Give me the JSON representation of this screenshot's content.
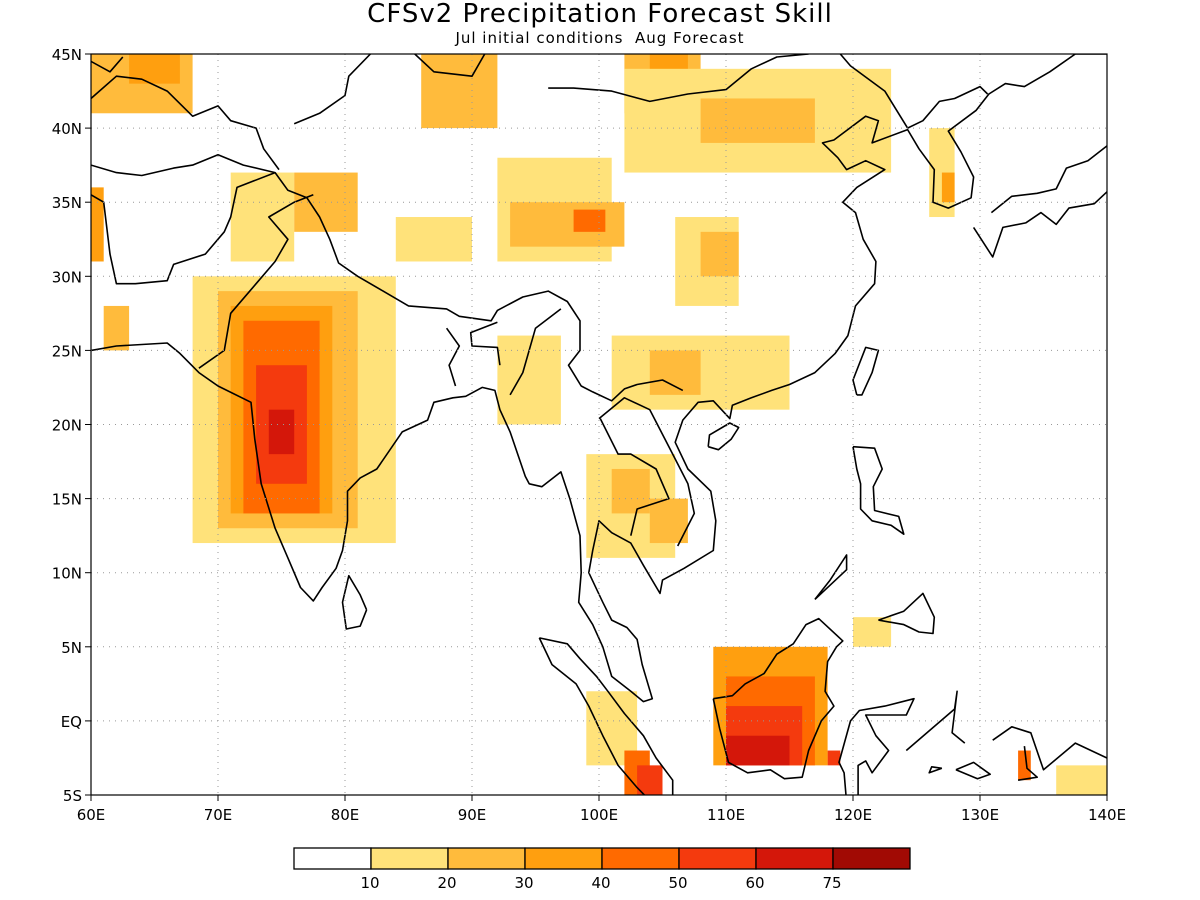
{
  "title": "CFSv2 Precipitation Forecast Skill",
  "subtitle": "Jul initial conditions  Aug Forecast",
  "map": {
    "lon_range": [
      60,
      140
    ],
    "lat_range": [
      -5,
      45
    ],
    "lon_ticks": [
      "60E",
      "70E",
      "80E",
      "90E",
      "100E",
      "110E",
      "120E",
      "130E",
      "140E"
    ],
    "lat_ticks": [
      "45N",
      "40N",
      "35N",
      "30N",
      "25N",
      "20N",
      "15N",
      "10N",
      "5N",
      "EQ",
      "5S"
    ],
    "gridlines": "dotted"
  },
  "legend": {
    "levels": [
      "10",
      "20",
      "30",
      "40",
      "50",
      "60",
      "75"
    ],
    "colors": [
      "#ffffff",
      "#ffe27a",
      "#ffbb3c",
      "#ff9f0f",
      "#ff6a00",
      "#f43a0e",
      "#d4170a",
      "#a10a04"
    ]
  },
  "chart_data": {
    "type": "heatmap",
    "title": "CFSv2 Precipitation Forecast Skill",
    "subtitle": "Jul initial conditions  Aug Forecast",
    "x_range": [
      60,
      140
    ],
    "y_range": [
      -5,
      45
    ],
    "contour_levels": [
      10,
      20,
      30,
      40,
      50,
      60,
      75
    ],
    "regions": [
      {
        "lon": [
          60,
          68
        ],
        "lat": [
          41,
          45
        ],
        "level": 20
      },
      {
        "lon": [
          63,
          67
        ],
        "lat": [
          43,
          45
        ],
        "level": 30
      },
      {
        "lon": [
          86,
          92
        ],
        "lat": [
          40,
          45
        ],
        "level": 20
      },
      {
        "lon": [
          102,
          108
        ],
        "lat": [
          41,
          45
        ],
        "level": 20
      },
      {
        "lon": [
          104,
          107
        ],
        "lat": [
          43,
          45
        ],
        "level": 30
      },
      {
        "lon": [
          102,
          123
        ],
        "lat": [
          37,
          44
        ],
        "level": 10
      },
      {
        "lon": [
          108,
          117
        ],
        "lat": [
          39,
          42
        ],
        "level": 20
      },
      {
        "lon": [
          71,
          76
        ],
        "lat": [
          31,
          37
        ],
        "level": 10
      },
      {
        "lon": [
          76,
          81
        ],
        "lat": [
          33,
          37
        ],
        "level": 20
      },
      {
        "lon": [
          84,
          90
        ],
        "lat": [
          31,
          34
        ],
        "level": 10
      },
      {
        "lon": [
          92,
          101
        ],
        "lat": [
          31,
          38
        ],
        "level": 10
      },
      {
        "lon": [
          93,
          102
        ],
        "lat": [
          32,
          35
        ],
        "level": 20
      },
      {
        "lon": [
          98,
          100.5
        ],
        "lat": [
          33,
          34.5
        ],
        "level": 40
      },
      {
        "lon": [
          106,
          111
        ],
        "lat": [
          28,
          34
        ],
        "level": 10
      },
      {
        "lon": [
          108,
          111
        ],
        "lat": [
          30,
          33
        ],
        "level": 20
      },
      {
        "lon": [
          126,
          128
        ],
        "lat": [
          34,
          40
        ],
        "level": 10
      },
      {
        "lon": [
          127,
          128
        ],
        "lat": [
          35,
          37
        ],
        "level": 30
      },
      {
        "lon": [
          60,
          61
        ],
        "lat": [
          31,
          36
        ],
        "level": 30
      },
      {
        "lon": [
          61,
          63
        ],
        "lat": [
          25,
          28
        ],
        "level": 20
      },
      {
        "lon": [
          68,
          84
        ],
        "lat": [
          12,
          30
        ],
        "level": 10
      },
      {
        "lon": [
          70,
          81
        ],
        "lat": [
          13,
          29
        ],
        "level": 20
      },
      {
        "lon": [
          71,
          79
        ],
        "lat": [
          14,
          28
        ],
        "level": 30
      },
      {
        "lon": [
          72,
          78
        ],
        "lat": [
          14,
          27
        ],
        "level": 40
      },
      {
        "lon": [
          73,
          77
        ],
        "lat": [
          16,
          24
        ],
        "level": 50
      },
      {
        "lon": [
          74,
          76
        ],
        "lat": [
          18,
          21
        ],
        "level": 60
      },
      {
        "lon": [
          92,
          97
        ],
        "lat": [
          20,
          26
        ],
        "level": 10
      },
      {
        "lon": [
          101,
          115
        ],
        "lat": [
          21,
          26
        ],
        "level": 10
      },
      {
        "lon": [
          104,
          108
        ],
        "lat": [
          22,
          25
        ],
        "level": 20
      },
      {
        "lon": [
          99,
          106
        ],
        "lat": [
          11,
          18
        ],
        "level": 10
      },
      {
        "lon": [
          101,
          104
        ],
        "lat": [
          14,
          17
        ],
        "level": 20
      },
      {
        "lon": [
          104,
          107
        ],
        "lat": [
          12,
          15
        ],
        "level": 20
      },
      {
        "lon": [
          120,
          123
        ],
        "lat": [
          5,
          7
        ],
        "level": 10
      },
      {
        "lon": [
          118,
          119
        ],
        "lat": [
          -3,
          -2
        ],
        "level": 50
      },
      {
        "lon": [
          99,
          103
        ],
        "lat": [
          -3,
          2
        ],
        "level": 10
      },
      {
        "lon": [
          102,
          104
        ],
        "lat": [
          -5,
          -2
        ],
        "level": 40
      },
      {
        "lon": [
          103,
          105
        ],
        "lat": [
          -5,
          -3
        ],
        "level": 50
      },
      {
        "lon": [
          109,
          118
        ],
        "lat": [
          -3,
          5
        ],
        "level": 30
      },
      {
        "lon": [
          110,
          117
        ],
        "lat": [
          -3,
          3
        ],
        "level": 40
      },
      {
        "lon": [
          110,
          116
        ],
        "lat": [
          -3,
          1
        ],
        "level": 50
      },
      {
        "lon": [
          110,
          115
        ],
        "lat": [
          -3,
          -1
        ],
        "level": 60
      },
      {
        "lon": [
          133,
          134
        ],
        "lat": [
          -4,
          -2
        ],
        "level": 40
      },
      {
        "lon": [
          136,
          140
        ],
        "lat": [
          -5,
          -3
        ],
        "level": 10
      }
    ]
  }
}
